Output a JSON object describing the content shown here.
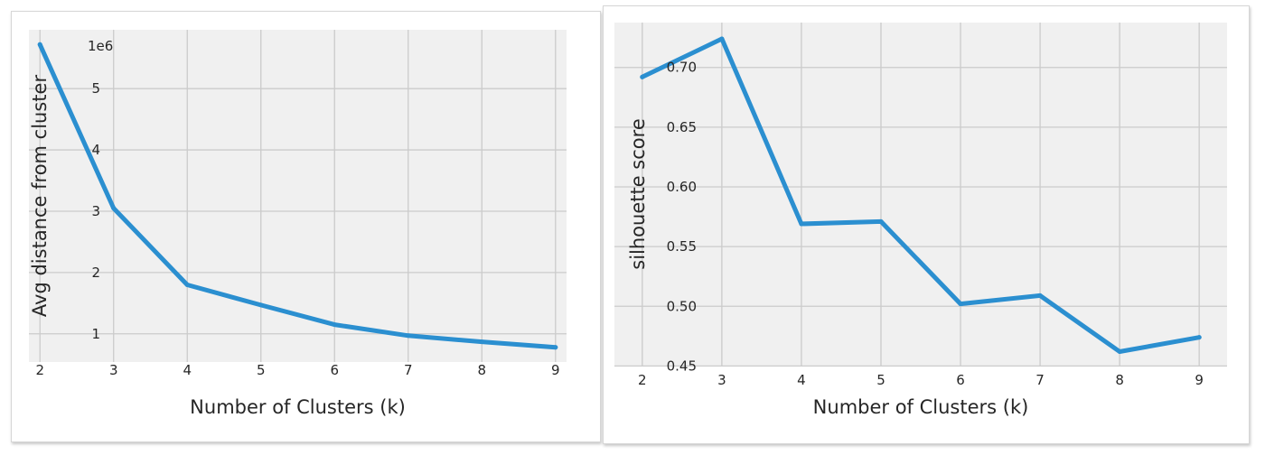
{
  "chart_data": [
    {
      "type": "line",
      "title": "",
      "xlabel": "Number of Clusters (k)",
      "ylabel": "Avg distance from cluster",
      "y_offset_label": "1e6",
      "x": [
        2,
        3,
        4,
        5,
        6,
        7,
        8,
        9
      ],
      "series": [
        {
          "values": [
            5.72,
            3.05,
            1.8,
            1.47,
            1.15,
            0.97,
            0.87,
            0.78
          ],
          "color": "#2b8fd0"
        }
      ],
      "xticks": [
        2,
        3,
        4,
        5,
        6,
        7,
        8,
        9
      ],
      "xtick_labels": [
        "2",
        "3",
        "4",
        "5",
        "6",
        "7",
        "8",
        "9"
      ],
      "yticks": [
        1,
        2,
        3,
        4,
        5
      ],
      "ytick_labels": [
        "1",
        "2",
        "3",
        "4",
        "5"
      ],
      "xlim": [
        1.85,
        9.15
      ],
      "ylim": [
        0.54,
        5.96
      ],
      "grid": true,
      "background": "#f0f0f0",
      "grid_color": "#cbcbcb"
    },
    {
      "type": "line",
      "title": "",
      "xlabel": "Number of Clusters (k)",
      "ylabel": "silhouette score",
      "x": [
        2,
        3,
        4,
        5,
        6,
        7,
        8,
        9
      ],
      "series": [
        {
          "values": [
            0.692,
            0.724,
            0.569,
            0.571,
            0.502,
            0.509,
            0.462,
            0.474
          ],
          "color": "#2b8fd0"
        }
      ],
      "xticks": [
        2,
        3,
        4,
        5,
        6,
        7,
        8,
        9
      ],
      "xtick_labels": [
        "2",
        "3",
        "4",
        "5",
        "6",
        "7",
        "8",
        "9"
      ],
      "yticks": [
        0.45,
        0.5,
        0.55,
        0.6,
        0.65,
        0.7
      ],
      "ytick_labels": [
        "0.45",
        "0.50",
        "0.55",
        "0.60",
        "0.65",
        "0.70"
      ],
      "xlim": [
        1.65,
        9.35
      ],
      "ylim": [
        0.4503,
        0.7376
      ],
      "grid": true,
      "background": "#f0f0f0",
      "grid_color": "#cbcbcb"
    }
  ]
}
